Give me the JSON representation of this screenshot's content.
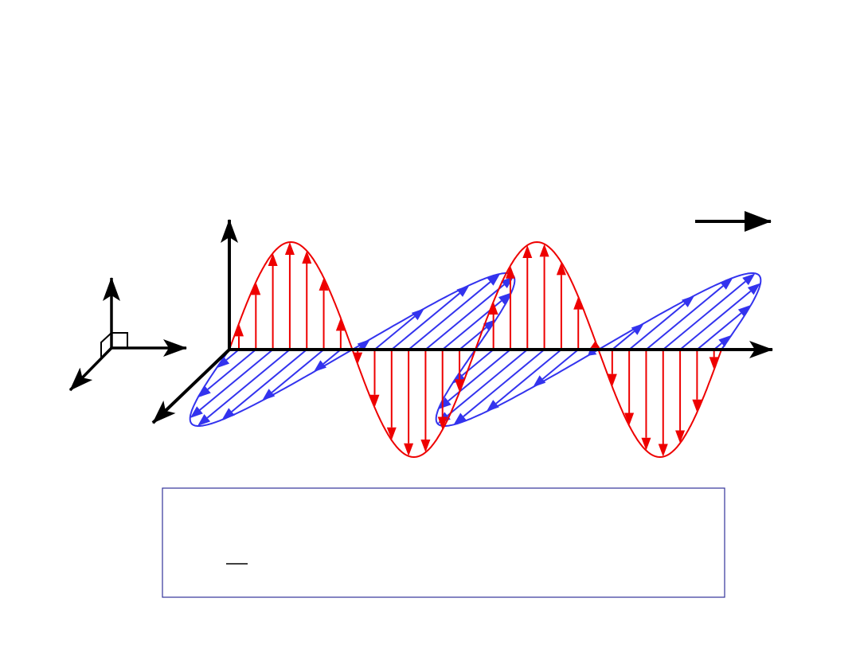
{
  "diagram": {
    "type": "electromagnetic-wave",
    "cycles_shown": 2,
    "colors": {
      "electric_field": "#ee0000",
      "magnetic_field": "#3333ee",
      "axes": "#000000",
      "formula_box_border": "#333399"
    },
    "icons": {
      "propagation": "arrow-right-icon",
      "triad": "coordinate-axes-icon"
    }
  }
}
